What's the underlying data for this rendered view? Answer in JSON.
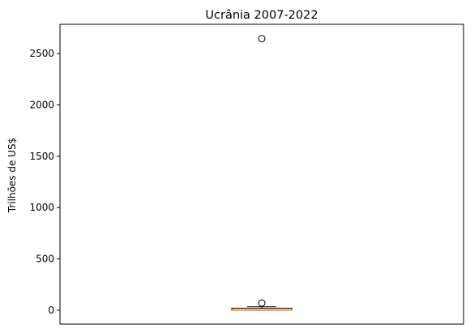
{
  "chart_data": {
    "type": "box",
    "title": "Ucrânia 2007-2022",
    "xlabel": "",
    "ylabel": "Trilhões de US$",
    "ylim": [
      -135,
      2785
    ],
    "yticks": [
      0,
      500,
      1000,
      1500,
      2000,
      2500
    ],
    "grid": false,
    "legend": "none",
    "box": {
      "whisker_low": 0,
      "q1": 0,
      "median": 2,
      "q3": 20,
      "whisker_high": 34,
      "outliers": [
        70,
        2645
      ]
    },
    "colors": {
      "box": "#000000",
      "median": "#ff7f0e",
      "background": "#ffffff"
    }
  }
}
